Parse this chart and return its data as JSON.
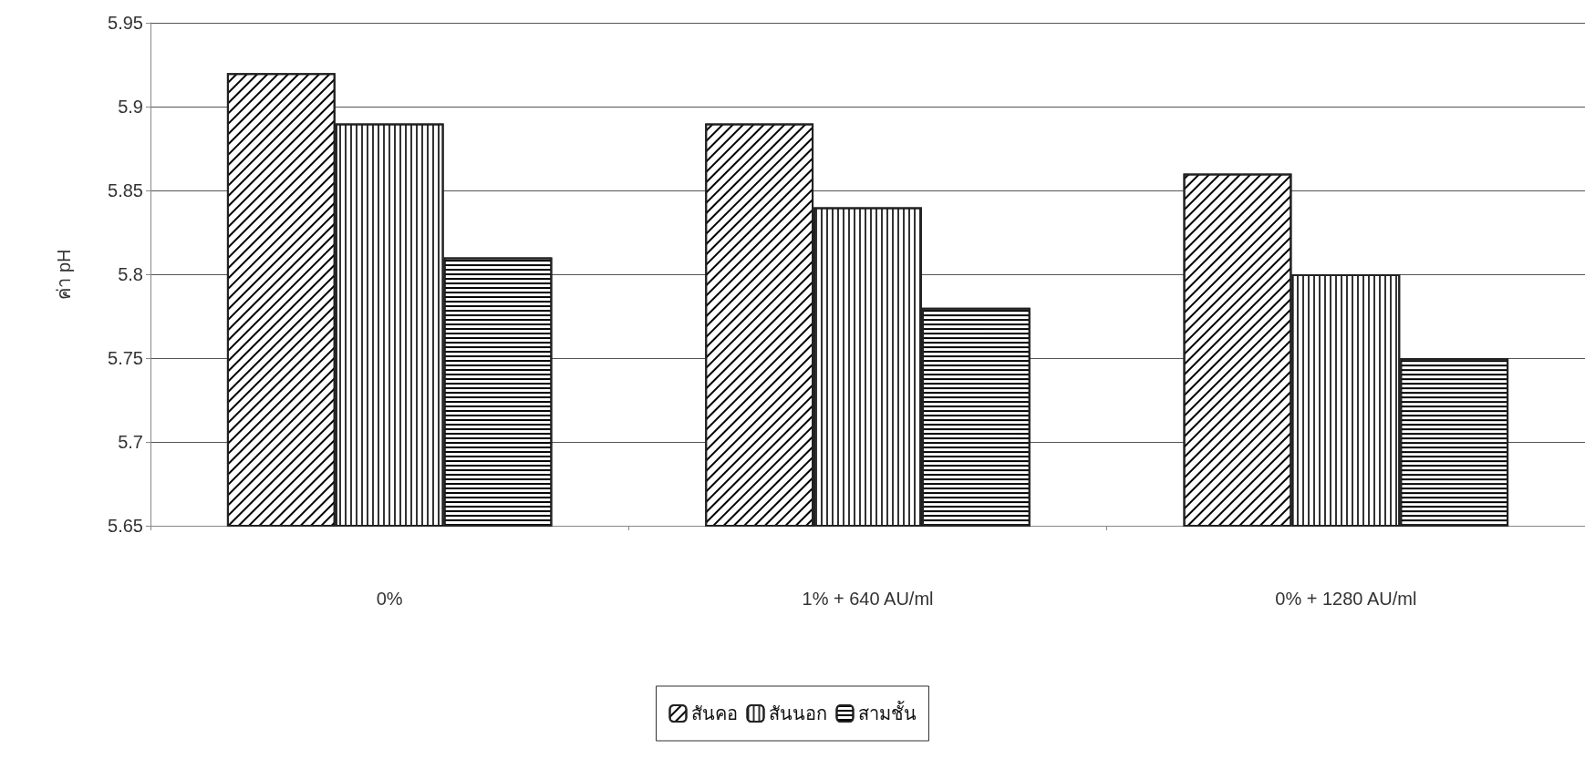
{
  "chart_data": {
    "type": "bar",
    "ylabel": "ค่า pH",
    "categories": [
      "0%",
      "1% + 640 AU/ml",
      "0% + 1280 AU/ml"
    ],
    "series": [
      {
        "name": "สันคอ",
        "color": "#ffffff",
        "values": [
          5.92,
          5.89,
          5.86
        ]
      },
      {
        "name": "สันนอก",
        "color": "#ffffff",
        "values": [
          5.89,
          5.84,
          5.8
        ]
      },
      {
        "name": "สามชั้น",
        "color": "#ffffff",
        "values": [
          5.81,
          5.78,
          5.75
        ]
      }
    ],
    "ylim": [
      5.65,
      5.95
    ],
    "yticks": [
      5.65,
      5.7,
      5.75,
      5.8,
      5.85,
      5.9,
      5.95
    ],
    "grid": "y",
    "legend": "bottom"
  }
}
